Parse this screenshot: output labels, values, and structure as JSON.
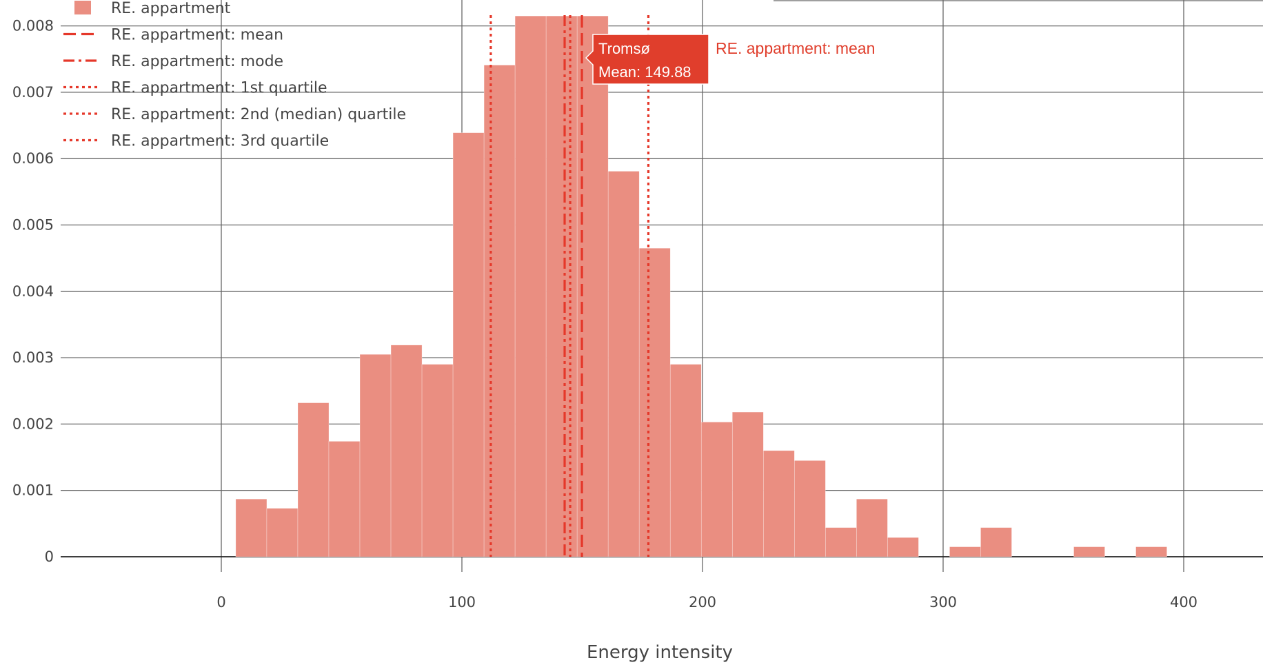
{
  "chart_data": {
    "type": "bar",
    "xlabel": "Energy intensity",
    "ylabel": "",
    "xlim": [
      -70,
      430
    ],
    "ylim": [
      -0.0005,
      0.0082
    ],
    "x_ticks": [
      0,
      100,
      200,
      300,
      400
    ],
    "x_tick_labels": [
      "0",
      "100",
      "200",
      "300",
      "400"
    ],
    "y_ticks": [
      0,
      0.001,
      0.002,
      0.003,
      0.004,
      0.005,
      0.006,
      0.007,
      0.008
    ],
    "y_tick_labels": [
      "0",
      "0.001",
      "0.002",
      "0.003",
      "0.004",
      "0.005",
      "0.006",
      "0.007",
      "0.008"
    ],
    "grid": true,
    "legend_position": "top-left",
    "bin_width": 12.9,
    "bin_start": 6,
    "series": [
      {
        "name": "RE. appartment",
        "color": "#EA8E81",
        "values": [
          0.00087,
          0.00073,
          0.00232,
          0.00174,
          0.00305,
          0.00319,
          0.0029,
          0.00639,
          0.00741,
          0.00815,
          0.00815,
          0.00815,
          0.00581,
          0.00465,
          0.0029,
          0.00203,
          0.00218,
          0.0016,
          0.00145,
          0.00044,
          0.00087,
          0.00029,
          0,
          0.00015,
          0.00044,
          0,
          0,
          0.00015,
          0,
          0.00015
        ]
      }
    ],
    "lines": [
      {
        "name": "RE. appartment: mean",
        "style": "dash",
        "x": 149.88
      },
      {
        "name": "RE. appartment: mode",
        "style": "dashdot",
        "x": 142.7
      },
      {
        "name": "RE. appartment: 1st quartile",
        "style": "dot",
        "x": 112
      },
      {
        "name": "RE. appartment: 2nd (median) quartile",
        "style": "dot",
        "x": 145
      },
      {
        "name": "RE. appartment: 3rd quartile",
        "style": "dot",
        "x": 177.5
      }
    ],
    "line_color": "#E5382A",
    "hover": {
      "title": "Tromsø",
      "value_text": "Mean: 149.88",
      "series_name": "RE. appartment: mean",
      "color": "#E03E2C"
    }
  }
}
